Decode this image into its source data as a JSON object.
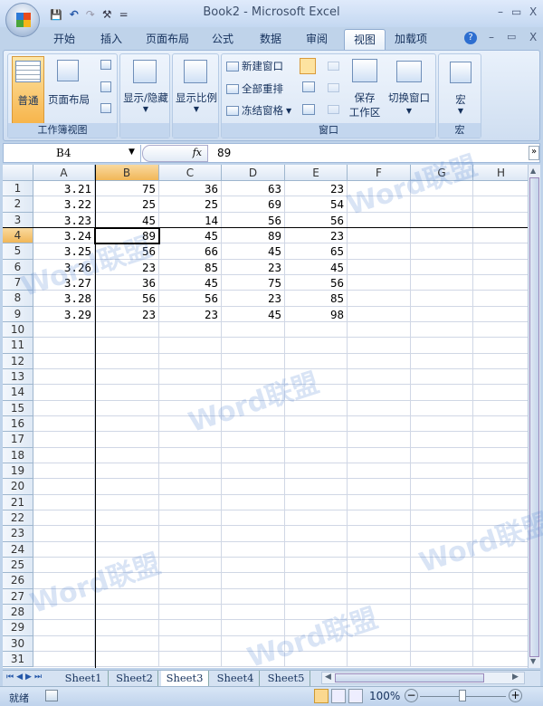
{
  "window": {
    "title": "Book2 - Microsoft Excel",
    "min": "–",
    "max": "▭",
    "close": "X"
  },
  "qat": {
    "save": "💾",
    "undo": "↶",
    "redo": "↷",
    "tools": "⚒",
    "more": "="
  },
  "tabs": [
    {
      "label": "开始"
    },
    {
      "label": "插入"
    },
    {
      "label": "页面布局"
    },
    {
      "label": "公式"
    },
    {
      "label": "数据"
    },
    {
      "label": "审阅"
    },
    {
      "label": "视图",
      "active": true
    },
    {
      "label": "加载项"
    }
  ],
  "ribbon": {
    "workbook_views": {
      "label": "工作簿视图",
      "normal": "普通",
      "page_layout": "页面布局"
    },
    "show_hide": "显示/隐藏",
    "zoom": "显示比例",
    "window": {
      "label": "窗口",
      "new_window": "新建窗口",
      "arrange_all": "全部重排",
      "freeze_panes": "冻结窗格",
      "save_workspace_1": "保存",
      "save_workspace_2": "工作区",
      "switch_windows": "切换窗口"
    },
    "macros": {
      "label": "宏",
      "button": "宏"
    }
  },
  "formula_bar": {
    "name_box": "B4",
    "fx": "fx",
    "value": "89"
  },
  "sheet": {
    "columns": [
      "A",
      "B",
      "C",
      "D",
      "E",
      "F",
      "G",
      "H"
    ],
    "selected_column": "B",
    "selected_row": 4,
    "row_count": 31,
    "rows": [
      [
        "3.21",
        "75",
        "36",
        "63",
        "23"
      ],
      [
        "3.22",
        "25",
        "25",
        "69",
        "54"
      ],
      [
        "3.23",
        "45",
        "14",
        "56",
        "56"
      ],
      [
        "3.24",
        "89",
        "45",
        "89",
        "23"
      ],
      [
        "3.25",
        "56",
        "66",
        "45",
        "65"
      ],
      [
        "3.26",
        "23",
        "85",
        "23",
        "45"
      ],
      [
        "3.27",
        "36",
        "45",
        "75",
        "56"
      ],
      [
        "3.28",
        "56",
        "56",
        "23",
        "85"
      ],
      [
        "3.29",
        "23",
        "23",
        "45",
        "98"
      ]
    ],
    "freeze": {
      "after_column": "A",
      "after_row": 3
    }
  },
  "sheet_tabs": [
    {
      "label": "Sheet1"
    },
    {
      "label": "Sheet2"
    },
    {
      "label": "Sheet3",
      "active": true
    },
    {
      "label": "Sheet4"
    },
    {
      "label": "Sheet5"
    }
  ],
  "status": {
    "ready": "就绪",
    "zoom": "100%",
    "zoom_level": 100
  },
  "watermark": "Word联盟"
}
